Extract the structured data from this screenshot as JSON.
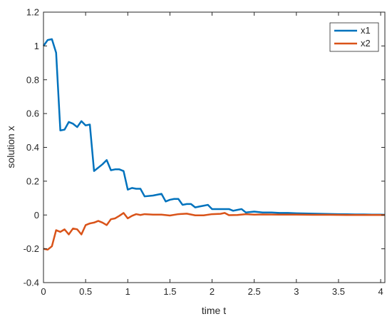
{
  "chart_data": {
    "type": "line",
    "title": "",
    "xlabel": "time t",
    "ylabel": "solution x",
    "xlim": [
      0,
      4.05
    ],
    "ylim": [
      -0.4,
      1.2
    ],
    "xticks": [
      0,
      0.5,
      1,
      1.5,
      2,
      2.5,
      3,
      3.5,
      4
    ],
    "xtick_labels": [
      "0",
      "0.5",
      "1",
      "1.5",
      "2",
      "2.5",
      "3",
      "3.5",
      "4"
    ],
    "yticks": [
      -0.4,
      -0.2,
      0,
      0.2,
      0.4,
      0.6,
      0.8,
      1,
      1.2
    ],
    "ytick_labels": [
      "-0.4",
      "-0.2",
      "0",
      "0.2",
      "0.4",
      "0.6",
      "0.8",
      "1",
      "1.2"
    ],
    "grid": false,
    "legend_position": "top-right",
    "series": [
      {
        "name": "x1",
        "color": "#0072BD",
        "x": [
          0,
          0.05,
          0.1,
          0.15,
          0.2,
          0.25,
          0.3,
          0.35,
          0.4,
          0.45,
          0.5,
          0.55,
          0.6,
          0.65,
          0.7,
          0.75,
          0.8,
          0.85,
          0.9,
          0.95,
          1.0,
          1.05,
          1.1,
          1.15,
          1.2,
          1.3,
          1.4,
          1.45,
          1.5,
          1.55,
          1.6,
          1.65,
          1.7,
          1.75,
          1.8,
          1.85,
          1.9,
          1.95,
          2.0,
          2.05,
          2.1,
          2.2,
          2.25,
          2.3,
          2.35,
          2.4,
          2.5,
          2.6,
          2.7,
          2.8,
          2.9,
          3.0,
          3.1,
          3.2,
          3.3,
          3.4,
          3.5,
          3.6,
          3.7,
          3.8,
          3.9,
          4.0,
          4.05
        ],
        "y": [
          1.0,
          1.035,
          1.04,
          0.96,
          0.5,
          0.505,
          0.55,
          0.54,
          0.52,
          0.555,
          0.53,
          0.535,
          0.26,
          0.28,
          0.3,
          0.325,
          0.265,
          0.27,
          0.27,
          0.26,
          0.15,
          0.16,
          0.155,
          0.155,
          0.11,
          0.115,
          0.125,
          0.08,
          0.09,
          0.095,
          0.095,
          0.06,
          0.065,
          0.065,
          0.045,
          0.05,
          0.055,
          0.06,
          0.035,
          0.035,
          0.035,
          0.035,
          0.025,
          0.03,
          0.035,
          0.015,
          0.02,
          0.015,
          0.015,
          0.012,
          0.012,
          0.01,
          0.009,
          0.008,
          0.007,
          0.006,
          0.005,
          0.004,
          0.003,
          0.003,
          0.002,
          0.002,
          0.001
        ]
      },
      {
        "name": "x2",
        "color": "#D95319",
        "x": [
          0,
          0.05,
          0.1,
          0.15,
          0.2,
          0.25,
          0.3,
          0.35,
          0.4,
          0.45,
          0.5,
          0.55,
          0.6,
          0.65,
          0.7,
          0.75,
          0.8,
          0.85,
          0.9,
          0.95,
          1.0,
          1.05,
          1.1,
          1.15,
          1.2,
          1.3,
          1.4,
          1.5,
          1.6,
          1.7,
          1.8,
          1.9,
          2.0,
          2.1,
          2.15,
          2.2,
          2.3,
          2.4,
          2.5,
          2.6,
          2.8,
          3.0,
          3.2,
          3.4,
          3.6,
          3.8,
          4.0,
          4.05
        ],
        "y": [
          -0.2,
          -0.205,
          -0.185,
          -0.09,
          -0.1,
          -0.085,
          -0.115,
          -0.08,
          -0.085,
          -0.115,
          -0.06,
          -0.05,
          -0.045,
          -0.035,
          -0.045,
          -0.06,
          -0.025,
          -0.02,
          -0.005,
          0.012,
          -0.02,
          -0.005,
          0.005,
          0.0,
          0.005,
          0.002,
          0.002,
          -0.003,
          0.005,
          0.008,
          -0.002,
          -0.002,
          0.005,
          0.007,
          0.012,
          -0.001,
          0.0,
          0.005,
          0.002,
          0.003,
          0.002,
          0.002,
          0.001,
          0.001,
          0.0,
          0.0,
          0.0,
          0.0
        ]
      }
    ]
  }
}
